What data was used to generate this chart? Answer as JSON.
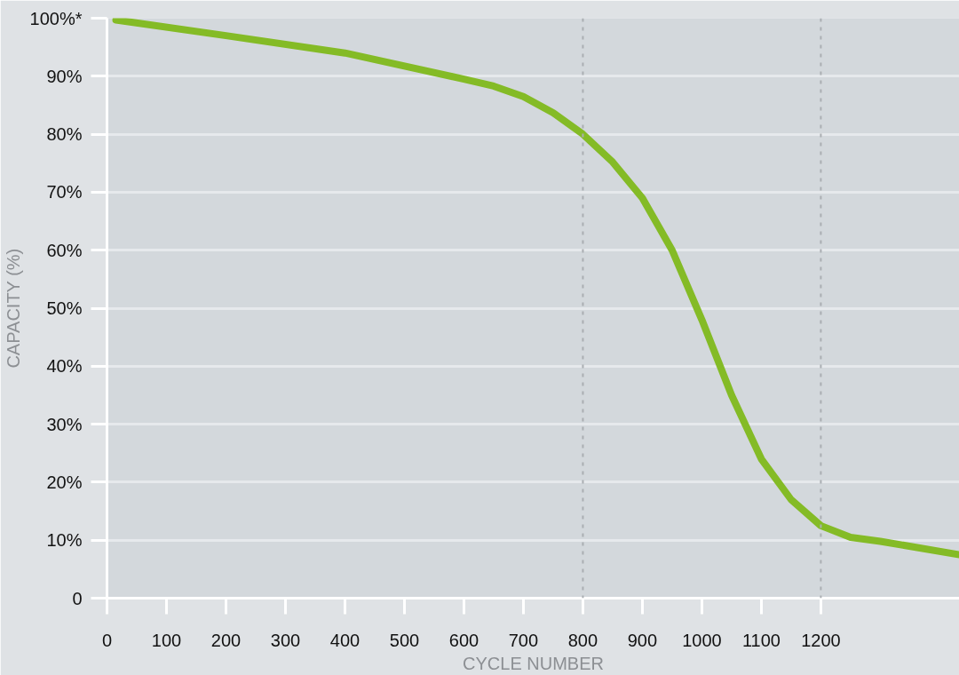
{
  "chart_data": {
    "type": "line",
    "xlabel": "CYCLE NUMBER",
    "ylabel": "CAPACITY (%)",
    "xlim": [
      0,
      1433
    ],
    "ylim": [
      0,
      100
    ],
    "xticks": [
      0,
      100,
      200,
      300,
      400,
      500,
      600,
      700,
      800,
      900,
      1000,
      1100,
      1200
    ],
    "yticks": [
      {
        "value": 0,
        "label": "0"
      },
      {
        "value": 10,
        "label": "10%"
      },
      {
        "value": 20,
        "label": "20%"
      },
      {
        "value": 30,
        "label": "30%"
      },
      {
        "value": 40,
        "label": "40%"
      },
      {
        "value": 50,
        "label": "50%"
      },
      {
        "value": 60,
        "label": "60%"
      },
      {
        "value": 70,
        "label": "70%"
      },
      {
        "value": 80,
        "label": "80%"
      },
      {
        "value": 90,
        "label": "90%"
      },
      {
        "value": 100,
        "label": "100%*"
      }
    ],
    "grid": "y",
    "marker": "none",
    "line_style": "solid",
    "ref_lines": [
      {
        "axis": "x",
        "value": 800,
        "color": "#aaaeb2",
        "line_style": "dashed"
      },
      {
        "axis": "x",
        "value": 1200,
        "color": "#aaaeb2",
        "line_style": "dashed"
      }
    ],
    "series": [
      {
        "color": "#84bb26",
        "x": [
          15,
          200,
          400,
          600,
          650,
          700,
          750,
          800,
          850,
          900,
          950,
          1000,
          1050,
          1100,
          1150,
          1200,
          1250,
          1300,
          1433
        ],
        "values": [
          99.7,
          97,
          94,
          89.5,
          88.3,
          86.5,
          83.7,
          80,
          75.2,
          69,
          60,
          48,
          35,
          24,
          17,
          12.5,
          10.5,
          9.8,
          7.5
        ]
      }
    ]
  }
}
